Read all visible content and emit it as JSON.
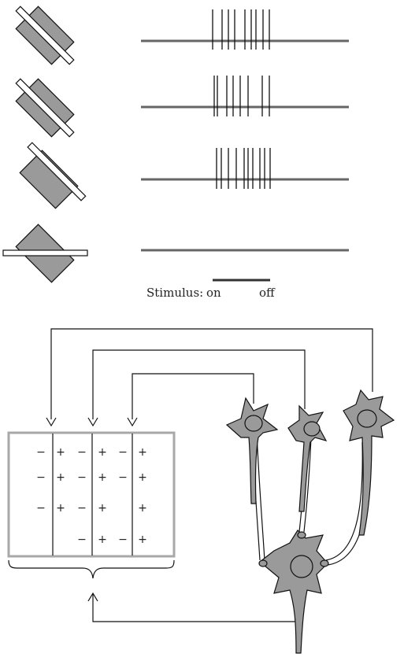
{
  "stimulus": {
    "label": "Stimulus:",
    "on_label": "on",
    "off_label": "off"
  },
  "spike_trains": [
    {
      "orientation": "tilted-45-right",
      "spike_count": 9
    },
    {
      "orientation": "tilted-45-right",
      "spike_count": 8
    },
    {
      "orientation": "tilted-45-right",
      "spike_count": 10
    },
    {
      "orientation": "horizontal",
      "spike_count": 0
    }
  ],
  "receptive_field": {
    "columns": [
      [
        "−",
        "−",
        "−",
        ""
      ],
      [
        "+",
        "+",
        "+",
        ""
      ],
      [
        "−",
        "−",
        "−",
        "−"
      ],
      [
        "+",
        "+",
        "+",
        "+"
      ],
      [
        "−",
        "−",
        "",
        "−"
      ],
      [
        "+",
        "+",
        "+",
        "+"
      ]
    ]
  },
  "colors": {
    "gray_fill": "#9a9a9a",
    "cell_fill": "#b8b8b8",
    "line": "#111111",
    "trace": "#666666"
  }
}
